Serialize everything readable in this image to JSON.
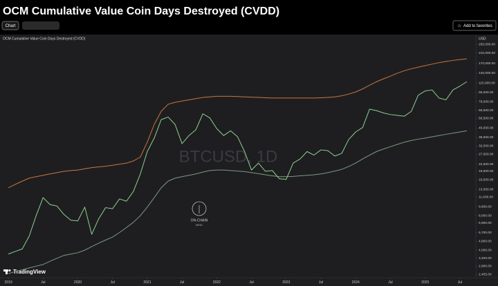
{
  "header": {
    "title": "OCM Cumulative Value Coin Days Destroyed (CVDD)",
    "tab": "Chart",
    "favorite_button": "Add to favorites"
  },
  "chart_data": {
    "type": "line",
    "title": "OCM Cumulative Value Coin Days Destroyed (CVDD)",
    "y_unit_label": "USD",
    "watermark": "BTCUSD, 1D",
    "branding": "TradingView",
    "logo_text": [
      "ON-CHAIN",
      "MIND"
    ],
    "log_scale": true,
    "grid": false,
    "xlim": [
      2018.88,
      2025.73
    ],
    "ylim": [
      2300,
      280000
    ],
    "xticks": [
      2019,
      {
        "value": 2019.5,
        "label": "Jul"
      },
      2020,
      {
        "value": 2020.5,
        "label": "Jul"
      },
      2021,
      {
        "value": 2021.5,
        "label": "Jul"
      },
      2022,
      {
        "value": 2022.5,
        "label": "Jul"
      },
      2023,
      {
        "value": 2023.5,
        "label": "Jul"
      },
      2024,
      {
        "value": 2024.5,
        "label": "Jul"
      },
      2025,
      {
        "value": 2025.5,
        "label": "Jul"
      }
    ],
    "yticks": [
      {
        "value": 250000,
        "label": "250,000.00"
      },
      {
        "value": 210000,
        "label": "210,000.00"
      },
      {
        "value": 170000,
        "label": "170,000.00"
      },
      {
        "value": 140000,
        "label": "140,000.00"
      },
      {
        "value": 115000,
        "label": "115,000.00"
      },
      {
        "value": 95000,
        "label": "95,000.00"
      },
      {
        "value": 79000,
        "label": "79,000.00"
      },
      {
        "value": 66500,
        "label": "66,500.00"
      },
      {
        "value": 56500,
        "label": "56,500.00"
      },
      {
        "value": 46500,
        "label": "46,500.00"
      },
      {
        "value": 38500,
        "label": "38,500.00"
      },
      {
        "value": 32500,
        "label": "32,500.00"
      },
      {
        "value": 27500,
        "label": "27,500.00"
      },
      {
        "value": 22500,
        "label": "22,500.00"
      },
      {
        "value": 19500,
        "label": "19,500.00"
      },
      {
        "value": 16500,
        "label": "16,500.00"
      },
      {
        "value": 13500,
        "label": "13,500.00"
      },
      {
        "value": 11600,
        "label": "11,600.00"
      },
      {
        "value": 9600,
        "label": "9,600.00"
      },
      {
        "value": 8000,
        "label": "8,000.00"
      },
      {
        "value": 6900,
        "label": "6,900.00"
      },
      {
        "value": 5700,
        "label": "5,700.00"
      },
      {
        "value": 4800,
        "label": "4,800.00"
      },
      {
        "value": 4000,
        "label": "4,000.00"
      },
      {
        "value": 3400,
        "label": "3,400.00"
      },
      {
        "value": 2900,
        "label": "2,900.00"
      },
      {
        "value": 2455,
        "label": "2,455.00"
      }
    ],
    "x": [
      2019.0,
      2019.1,
      2019.2,
      2019.3,
      2019.4,
      2019.5,
      2019.6,
      2019.7,
      2019.8,
      2019.9,
      2020.0,
      2020.1,
      2020.2,
      2020.3,
      2020.4,
      2020.5,
      2020.6,
      2020.7,
      2020.8,
      2020.9,
      2021.0,
      2021.1,
      2021.2,
      2021.3,
      2021.4,
      2021.5,
      2021.6,
      2021.7,
      2021.8,
      2021.9,
      2022.0,
      2022.1,
      2022.2,
      2022.3,
      2022.4,
      2022.5,
      2022.6,
      2022.7,
      2022.8,
      2022.9,
      2023.0,
      2023.1,
      2023.2,
      2023.3,
      2023.4,
      2023.5,
      2023.6,
      2023.7,
      2023.8,
      2023.9,
      2024.0,
      2024.1,
      2024.2,
      2024.3,
      2024.4,
      2024.5,
      2024.6,
      2024.7,
      2024.8,
      2024.9,
      2025.0,
      2025.1,
      2025.2,
      2025.3,
      2025.4,
      2025.5,
      2025.6
    ],
    "series": [
      {
        "color": "#c9773a",
        "values": [
          14000,
          15000,
          16000,
          17000,
          17500,
          18000,
          18500,
          19000,
          19500,
          19800,
          20000,
          20500,
          21000,
          21300,
          21600,
          22000,
          22500,
          23000,
          24000,
          26000,
          35000,
          50000,
          65000,
          75000,
          78000,
          80000,
          82000,
          84000,
          86000,
          87000,
          88000,
          88000,
          88000,
          87500,
          87000,
          86500,
          86000,
          85500,
          85000,
          85000,
          85000,
          85000,
          85000,
          85000,
          85000,
          85500,
          86000,
          87000,
          89000,
          92000,
          96000,
          102000,
          110000,
          118000,
          125000,
          132000,
          140000,
          147000,
          153000,
          158000,
          163000,
          168000,
          173000,
          177000,
          181000,
          184000,
          187000
        ]
      },
      {
        "color": "#7d9b7d",
        "values": [
          2500,
          2600,
          2700,
          2800,
          2900,
          3000,
          3200,
          3400,
          3600,
          3700,
          3800,
          4000,
          4300,
          4600,
          4900,
          5200,
          5700,
          6300,
          7000,
          8000,
          9500,
          11500,
          14000,
          16000,
          17000,
          17500,
          18000,
          18500,
          19200,
          19800,
          20000,
          20000,
          19800,
          19600,
          19400,
          19000,
          18600,
          18200,
          17800,
          17500,
          17500,
          17600,
          17800,
          18000,
          18200,
          18500,
          19000,
          19600,
          20300,
          21500,
          23000,
          25000,
          27000,
          29000,
          30500,
          32000,
          33500,
          35000,
          36200,
          37200,
          38000,
          39000,
          40000,
          41000,
          42000,
          43000,
          44000
        ]
      },
      {
        "color": "#8fd18f",
        "values": [
          3700,
          3900,
          4100,
          5300,
          8000,
          11500,
          10000,
          9700,
          8200,
          7300,
          7200,
          9500,
          5500,
          7500,
          9400,
          9200,
          11200,
          10700,
          13000,
          18500,
          29000,
          38000,
          55000,
          58000,
          50000,
          34000,
          40000,
          45000,
          62000,
          57000,
          46000,
          40000,
          44000,
          39000,
          29000,
          20000,
          23000,
          19500,
          19800,
          16800,
          16600,
          23000,
          25000,
          29000,
          27000,
          30000,
          29500,
          26500,
          28000,
          37000,
          43000,
          47000,
          68000,
          66000,
          63000,
          61000,
          60000,
          59000,
          65000,
          90000,
          98000,
          100000,
          85000,
          82000,
          100000,
          108000,
          118000
        ]
      }
    ]
  }
}
